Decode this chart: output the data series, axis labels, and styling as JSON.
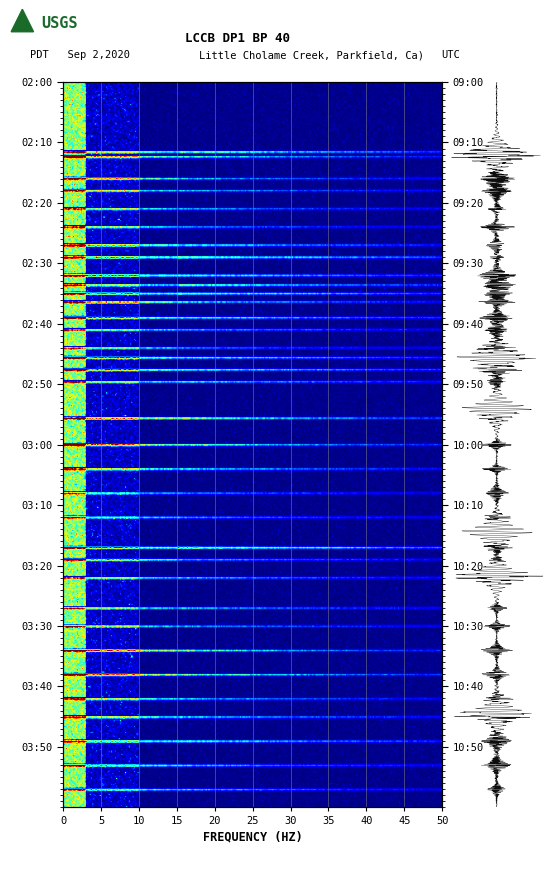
{
  "title_line1": "LCCB DP1 BP 40",
  "title_line2_left": "PDT   Sep 2,2020",
  "title_line2_mid": "Little Cholame Creek, Parkfield, Ca)",
  "title_line2_right": "UTC",
  "freq_min": 0,
  "freq_max": 50,
  "freq_ticks": [
    0,
    5,
    10,
    15,
    20,
    25,
    30,
    35,
    40,
    45,
    50
  ],
  "xlabel": "FREQUENCY (HZ)",
  "time_left_labels": [
    "02:00",
    "02:10",
    "02:20",
    "02:30",
    "02:40",
    "02:50",
    "03:00",
    "03:10",
    "03:20",
    "03:30",
    "03:40",
    "03:50"
  ],
  "time_right_labels": [
    "09:00",
    "09:10",
    "09:20",
    "09:30",
    "09:40",
    "09:50",
    "10:00",
    "10:10",
    "10:20",
    "10:30",
    "10:40",
    "10:50"
  ],
  "n_time_steps": 600,
  "n_freq_steps": 300,
  "background_color": "#ffffff",
  "seed": 42,
  "vertical_grid_freqs": [
    5,
    10,
    15,
    20,
    25,
    30,
    35,
    40,
    45
  ],
  "event_rows": [
    58,
    62,
    80,
    90,
    105,
    120,
    135,
    145,
    160,
    168,
    175,
    182,
    195,
    205,
    220,
    228,
    238,
    248,
    278,
    300,
    320,
    340,
    360,
    385,
    395,
    410,
    435,
    450,
    470,
    490,
    510,
    525,
    545,
    565,
    585
  ],
  "dark_rows": [
    57,
    61,
    79,
    89,
    104,
    119,
    134,
    144,
    159,
    167,
    174,
    181,
    194,
    204,
    219,
    227,
    237,
    247,
    277,
    299,
    319,
    339,
    359,
    384,
    394,
    409,
    434,
    449,
    469,
    489,
    509,
    524,
    544,
    564,
    584
  ]
}
